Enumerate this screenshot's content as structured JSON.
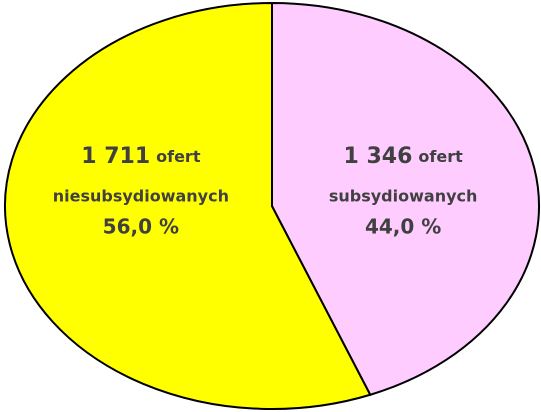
{
  "chart_data": {
    "type": "pie",
    "categories": [
      "niesubsydiowanych",
      "subsydiowanych"
    ],
    "values": [
      56.0,
      44.0
    ],
    "value_labels": [
      "56,0 %",
      "44,0 %"
    ],
    "counts": [
      1711,
      1346
    ],
    "count_labels": [
      "1 711",
      "1 346"
    ],
    "count_unit": "ofert",
    "colors": [
      "#ffff00",
      "#ffccff"
    ]
  }
}
